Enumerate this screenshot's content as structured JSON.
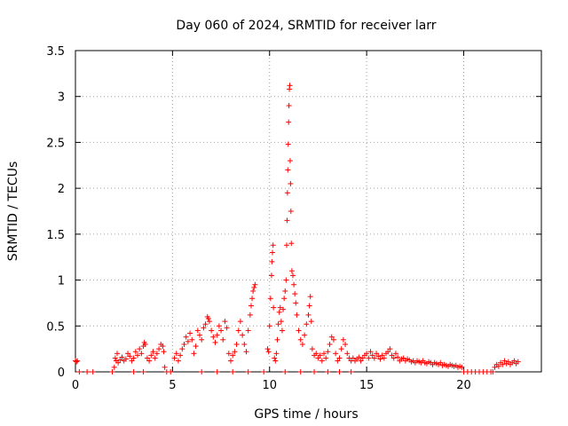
{
  "chart_data": {
    "type": "scatter",
    "title": "Day 060 of 2024, SRMTID for receiver larr",
    "xlabel": "GPS time / hours",
    "ylabel": "SRMTID / TECUs",
    "xlim": [
      0,
      24
    ],
    "ylim": [
      0,
      3.5
    ],
    "grid": true,
    "marker": "+",
    "color": "#ff0000",
    "xticks": [
      0,
      5,
      10,
      15,
      20
    ],
    "xtick_labels": [
      "0",
      "5",
      "10",
      "15",
      "20"
    ],
    "yticks": [
      0,
      0.5,
      1,
      1.5,
      2,
      2.5,
      3,
      3.5
    ],
    "ytick_labels": [
      "0",
      "0.5",
      "1",
      "1.5",
      "2",
      "2.5",
      "3",
      "3.5"
    ],
    "series": [
      {
        "name": "larr",
        "points": [
          [
            0.0,
            0.12
          ],
          [
            0.05,
            0.11
          ],
          [
            0.1,
            0.12
          ],
          [
            0.2,
            0.0
          ],
          [
            0.6,
            0.0
          ],
          [
            0.9,
            0.0
          ],
          [
            1.9,
            0.0
          ],
          [
            2.0,
            0.05
          ],
          [
            2.05,
            0.15
          ],
          [
            2.1,
            0.12
          ],
          [
            2.15,
            0.2
          ],
          [
            2.2,
            0.1
          ],
          [
            2.3,
            0.13
          ],
          [
            2.4,
            0.16
          ],
          [
            2.5,
            0.12
          ],
          [
            2.6,
            0.14
          ],
          [
            2.7,
            0.2
          ],
          [
            2.8,
            0.17
          ],
          [
            2.9,
            0.12
          ],
          [
            3.0,
            0.15
          ],
          [
            3.1,
            0.22
          ],
          [
            3.2,
            0.18
          ],
          [
            3.3,
            0.25
          ],
          [
            3.4,
            0.2
          ],
          [
            3.5,
            0.28
          ],
          [
            3.55,
            0.32
          ],
          [
            3.6,
            0.3
          ],
          [
            3.7,
            0.15
          ],
          [
            3.8,
            0.12
          ],
          [
            3.9,
            0.18
          ],
          [
            4.0,
            0.22
          ],
          [
            4.1,
            0.15
          ],
          [
            4.2,
            0.2
          ],
          [
            4.3,
            0.25
          ],
          [
            4.4,
            0.3
          ],
          [
            4.5,
            0.28
          ],
          [
            4.55,
            0.22
          ],
          [
            4.6,
            0.05
          ],
          [
            4.7,
            0.0
          ],
          [
            3.0,
            0.0
          ],
          [
            3.5,
            0.0
          ],
          [
            4.9,
            0.0
          ],
          [
            5.1,
            0.15
          ],
          [
            5.2,
            0.2
          ],
          [
            5.3,
            0.12
          ],
          [
            5.4,
            0.18
          ],
          [
            5.5,
            0.25
          ],
          [
            5.6,
            0.3
          ],
          [
            5.7,
            0.38
          ],
          [
            5.8,
            0.33
          ],
          [
            5.9,
            0.42
          ],
          [
            6.0,
            0.35
          ],
          [
            6.1,
            0.2
          ],
          [
            6.2,
            0.28
          ],
          [
            6.3,
            0.45
          ],
          [
            6.4,
            0.4
          ],
          [
            6.5,
            0.35
          ],
          [
            6.6,
            0.48
          ],
          [
            6.7,
            0.52
          ],
          [
            6.8,
            0.6
          ],
          [
            6.85,
            0.58
          ],
          [
            6.9,
            0.55
          ],
          [
            7.0,
            0.45
          ],
          [
            7.1,
            0.38
          ],
          [
            7.2,
            0.32
          ],
          [
            7.3,
            0.4
          ],
          [
            7.4,
            0.5
          ],
          [
            7.5,
            0.45
          ],
          [
            7.6,
            0.35
          ],
          [
            7.7,
            0.55
          ],
          [
            7.8,
            0.48
          ],
          [
            7.9,
            0.2
          ],
          [
            8.0,
            0.12
          ],
          [
            8.1,
            0.18
          ],
          [
            8.2,
            0.22
          ],
          [
            8.3,
            0.3
          ],
          [
            8.4,
            0.45
          ],
          [
            8.5,
            0.55
          ],
          [
            8.6,
            0.4
          ],
          [
            8.7,
            0.3
          ],
          [
            8.8,
            0.22
          ],
          [
            8.9,
            0.45
          ],
          [
            9.0,
            0.62
          ],
          [
            9.05,
            0.72
          ],
          [
            9.1,
            0.8
          ],
          [
            9.15,
            0.88
          ],
          [
            9.2,
            0.92
          ],
          [
            9.25,
            0.95
          ],
          [
            6.5,
            0.0
          ],
          [
            7.3,
            0.0
          ],
          [
            8.1,
            0.0
          ],
          [
            8.9,
            0.0
          ],
          [
            9.7,
            0.0
          ],
          [
            9.9,
            0.25
          ],
          [
            9.95,
            0.22
          ],
          [
            10.0,
            0.5
          ],
          [
            10.05,
            0.8
          ],
          [
            10.1,
            1.05
          ],
          [
            10.12,
            1.2
          ],
          [
            10.15,
            1.3
          ],
          [
            10.18,
            1.38
          ],
          [
            10.2,
            0.7
          ],
          [
            10.25,
            0.15
          ],
          [
            10.3,
            0.12
          ],
          [
            10.35,
            0.2
          ],
          [
            10.4,
            0.35
          ],
          [
            10.45,
            0.52
          ],
          [
            10.5,
            0.65
          ],
          [
            10.55,
            0.7
          ],
          [
            10.6,
            0.55
          ],
          [
            10.65,
            0.45
          ],
          [
            10.7,
            0.68
          ],
          [
            10.75,
            0.8
          ],
          [
            10.8,
            0.88
          ],
          [
            10.85,
            1.0
          ],
          [
            10.88,
            1.38
          ],
          [
            10.9,
            1.65
          ],
          [
            10.92,
            1.95
          ],
          [
            10.94,
            2.2
          ],
          [
            10.96,
            2.48
          ],
          [
            10.98,
            2.72
          ],
          [
            11.0,
            2.9
          ],
          [
            11.02,
            3.08
          ],
          [
            11.04,
            3.12
          ],
          [
            11.06,
            2.3
          ],
          [
            11.08,
            2.05
          ],
          [
            11.1,
            1.75
          ],
          [
            11.12,
            1.4
          ],
          [
            11.15,
            1.1
          ],
          [
            11.2,
            1.05
          ],
          [
            11.25,
            0.95
          ],
          [
            11.3,
            0.85
          ],
          [
            11.35,
            0.75
          ],
          [
            11.4,
            0.62
          ],
          [
            11.5,
            0.45
          ],
          [
            11.6,
            0.35
          ],
          [
            11.7,
            0.3
          ],
          [
            11.8,
            0.4
          ],
          [
            11.9,
            0.52
          ],
          [
            12.0,
            0.62
          ],
          [
            12.05,
            0.72
          ],
          [
            12.1,
            0.82
          ],
          [
            12.15,
            0.55
          ],
          [
            12.2,
            0.25
          ],
          [
            12.3,
            0.18
          ],
          [
            12.4,
            0.2
          ],
          [
            12.5,
            0.15
          ],
          [
            12.6,
            0.18
          ],
          [
            12.7,
            0.12
          ],
          [
            12.8,
            0.2
          ],
          [
            12.9,
            0.15
          ],
          [
            13.0,
            0.22
          ],
          [
            13.1,
            0.3
          ],
          [
            13.2,
            0.38
          ],
          [
            13.3,
            0.35
          ],
          [
            13.4,
            0.2
          ],
          [
            13.5,
            0.12
          ],
          [
            13.6,
            0.15
          ],
          [
            13.7,
            0.25
          ],
          [
            13.8,
            0.35
          ],
          [
            13.9,
            0.3
          ],
          [
            14.0,
            0.2
          ],
          [
            14.1,
            0.15
          ],
          [
            14.2,
            0.12
          ],
          [
            14.3,
            0.15
          ],
          [
            14.4,
            0.12
          ],
          [
            14.5,
            0.14
          ],
          [
            14.6,
            0.16
          ],
          [
            14.7,
            0.12
          ],
          [
            14.8,
            0.15
          ],
          [
            14.9,
            0.18
          ],
          [
            15.0,
            0.2
          ],
          [
            15.1,
            0.15
          ],
          [
            15.2,
            0.22
          ],
          [
            15.3,
            0.18
          ],
          [
            15.4,
            0.15
          ],
          [
            15.5,
            0.2
          ],
          [
            15.6,
            0.17
          ],
          [
            15.7,
            0.14
          ],
          [
            15.8,
            0.18
          ],
          [
            15.9,
            0.15
          ],
          [
            16.0,
            0.2
          ],
          [
            16.1,
            0.22
          ],
          [
            16.2,
            0.25
          ],
          [
            16.3,
            0.18
          ],
          [
            16.4,
            0.15
          ],
          [
            16.5,
            0.2
          ],
          [
            16.6,
            0.16
          ],
          [
            16.7,
            0.12
          ],
          [
            16.8,
            0.14
          ],
          [
            16.9,
            0.15
          ],
          [
            17.0,
            0.12
          ],
          [
            17.1,
            0.14
          ],
          [
            17.2,
            0.13
          ],
          [
            17.3,
            0.11
          ],
          [
            17.4,
            0.12
          ],
          [
            17.5,
            0.1
          ],
          [
            17.6,
            0.12
          ],
          [
            17.7,
            0.11
          ],
          [
            17.8,
            0.1
          ],
          [
            17.9,
            0.12
          ],
          [
            18.0,
            0.1
          ],
          [
            18.1,
            0.09
          ],
          [
            18.2,
            0.11
          ],
          [
            18.3,
            0.1
          ],
          [
            18.4,
            0.08
          ],
          [
            18.5,
            0.1
          ],
          [
            18.6,
            0.09
          ],
          [
            18.7,
            0.08
          ],
          [
            18.8,
            0.1
          ],
          [
            18.9,
            0.07
          ],
          [
            19.0,
            0.08
          ],
          [
            19.1,
            0.07
          ],
          [
            19.2,
            0.06
          ],
          [
            19.3,
            0.08
          ],
          [
            19.4,
            0.07
          ],
          [
            19.5,
            0.06
          ],
          [
            19.6,
            0.07
          ],
          [
            19.7,
            0.05
          ],
          [
            19.8,
            0.06
          ],
          [
            19.9,
            0.05
          ],
          [
            10.8,
            0.0
          ],
          [
            11.6,
            0.0
          ],
          [
            12.3,
            0.0
          ],
          [
            13.0,
            0.0
          ],
          [
            13.6,
            0.0
          ],
          [
            14.2,
            0.0
          ],
          [
            20.0,
            0.0
          ],
          [
            20.2,
            0.0
          ],
          [
            20.4,
            0.0
          ],
          [
            20.6,
            0.0
          ],
          [
            20.8,
            0.0
          ],
          [
            21.0,
            0.0
          ],
          [
            21.2,
            0.0
          ],
          [
            21.4,
            0.0
          ],
          [
            21.5,
            0.0
          ],
          [
            21.6,
            0.05
          ],
          [
            21.7,
            0.08
          ],
          [
            21.8,
            0.06
          ],
          [
            21.9,
            0.1
          ],
          [
            22.0,
            0.08
          ],
          [
            22.1,
            0.12
          ],
          [
            22.2,
            0.09
          ],
          [
            22.3,
            0.11
          ],
          [
            22.4,
            0.08
          ],
          [
            22.5,
            0.1
          ],
          [
            22.6,
            0.12
          ],
          [
            22.7,
            0.09
          ],
          [
            22.8,
            0.11
          ]
        ]
      }
    ]
  }
}
